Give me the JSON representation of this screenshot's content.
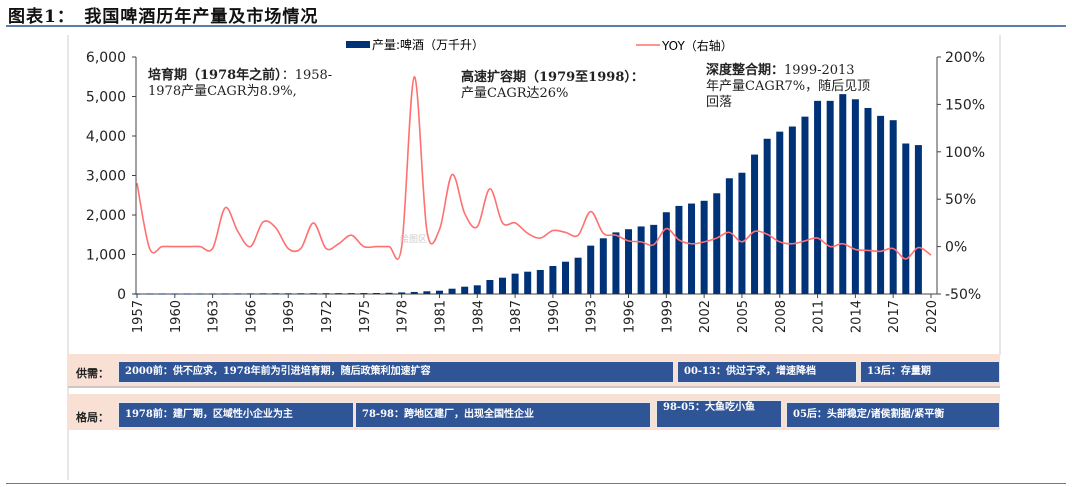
{
  "title": "图表1：　我国啤酒历年产量及市场情况",
  "chart_data": {
    "type": "bar+line",
    "legend_position": "top",
    "categories": [
      1957,
      1958,
      1959,
      1960,
      1961,
      1962,
      1963,
      1964,
      1965,
      1966,
      1967,
      1968,
      1969,
      1970,
      1971,
      1972,
      1973,
      1974,
      1975,
      1976,
      1977,
      1978,
      1979,
      1980,
      1981,
      1982,
      1983,
      1984,
      1985,
      1986,
      1987,
      1988,
      1989,
      1990,
      1991,
      1992,
      1993,
      1994,
      1995,
      1996,
      1997,
      1998,
      1999,
      2000,
      2001,
      2002,
      2003,
      2004,
      2005,
      2006,
      2007,
      2008,
      2009,
      2010,
      2011,
      2012,
      2013,
      2014,
      2015,
      2016,
      2017,
      2018,
      2019,
      2020
    ],
    "x_tick_labels": [
      "1957",
      "1960",
      "1963",
      "1966",
      "1969",
      "1972",
      "1975",
      "1978",
      "1981",
      "1984",
      "1987",
      "1990",
      "1993",
      "1996",
      "1999",
      "2002",
      "2005",
      "2008",
      "2011",
      "2014",
      "2017",
      "2020"
    ],
    "series": [
      {
        "name": "产量:啤酒（万千升）",
        "type": "bar",
        "axis": "left",
        "color": "#003278",
        "values": [
          12,
          13,
          13,
          13,
          13,
          13,
          13,
          14,
          15,
          16,
          17,
          18,
          18,
          19,
          20,
          21,
          22,
          23,
          24,
          25,
          30,
          40,
          52,
          69,
          84,
          134,
          185,
          220,
          354,
          413,
          515,
          565,
          608,
          709,
          818,
          919,
          1225,
          1410,
          1560,
          1640,
          1710,
          1750,
          2070,
          2230,
          2290,
          2360,
          2550,
          2930,
          3070,
          3530,
          3930,
          4110,
          4240,
          4490,
          4890,
          4890,
          5060,
          4930,
          4710,
          4510,
          4400,
          3810,
          3770,
          null
        ]
      },
      {
        "name": "YOY（右轴）",
        "type": "line",
        "axis": "right",
        "color": "#ff7070",
        "values": [
          67,
          -2,
          0,
          0,
          0,
          0,
          -2,
          41,
          16,
          0,
          26,
          20,
          -2,
          -2,
          25,
          -2,
          3,
          12,
          0,
          0,
          0,
          0,
          179,
          17,
          18,
          76,
          35,
          21,
          61,
          25,
          25,
          14,
          9,
          17,
          15,
          12,
          37,
          14,
          12,
          6,
          5,
          2,
          19,
          7,
          3,
          5,
          9,
          15,
          5,
          16,
          13,
          5,
          3,
          6,
          9,
          0,
          3,
          -3,
          -4,
          -5,
          -2,
          -13,
          -1,
          -9
        ]
      }
    ],
    "left_axis": {
      "ylim": [
        0,
        6000
      ],
      "ticks": [
        "0",
        "1,000",
        "2,000",
        "3,000",
        "4,000",
        "5,000",
        "6,000"
      ]
    },
    "right_axis": {
      "ylim": [
        -50,
        200
      ],
      "ticks": [
        "-50%",
        "0%",
        "50%",
        "100%",
        "150%",
        "200%"
      ]
    },
    "annotations": [
      {
        "bold": "培育期（1978年之前）",
        "text1": "：1958-",
        "text2": "1978产量CAGR为8.9%,"
      },
      {
        "bold": "高速扩容期（1979至1998）：",
        "text1": "",
        "text2": "产量CAGR达26%"
      },
      {
        "bold": "深度整合期：",
        "text1": "1999-2013",
        "text2": "年产量CAGR7%，随后见顶",
        "text3": "回落"
      }
    ],
    "watermark": "绘图区"
  },
  "supply_row": {
    "label": "供需：",
    "boxes": [
      "2000前：供不应求，1978年前为引进培育期，随后政策利加速扩容",
      "00-13：供过于求，增速降档",
      "13后：存量期"
    ]
  },
  "structure_row": {
    "label": "格局：",
    "boxes": [
      "1978前：建厂期，区域性小企业为主",
      "78-98：跨地区建厂，出现全国性企业",
      "98-05：大鱼吃小鱼",
      "05后：头部稳定/诸侯割据/紧平衡"
    ]
  }
}
